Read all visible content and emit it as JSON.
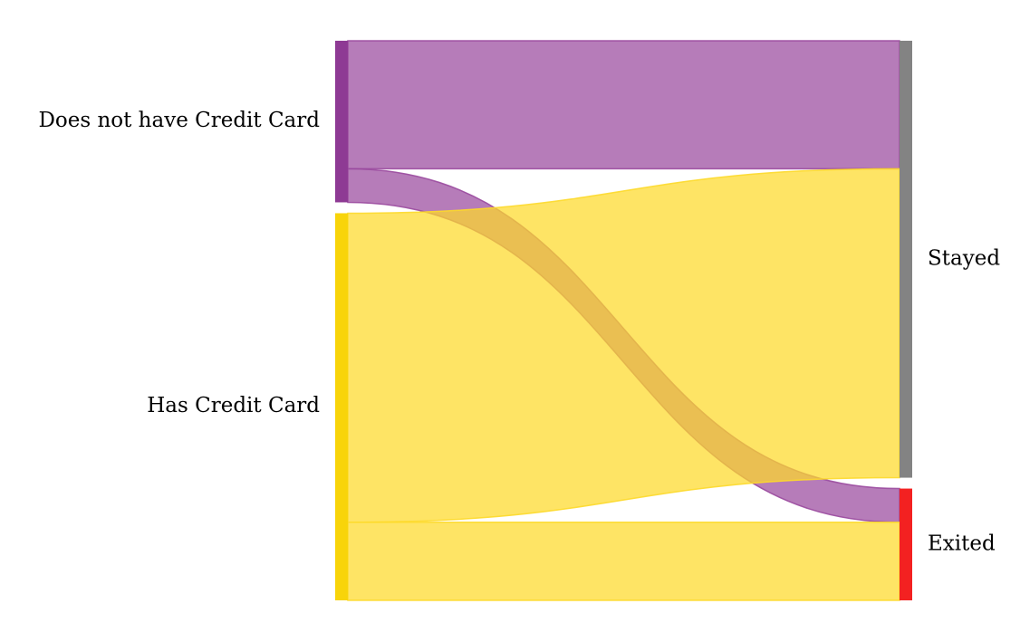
{
  "chart_data": {
    "type": "sankey",
    "title": "",
    "source_nodes": [
      {
        "id": "no_card",
        "label": "Does not have Credit Card",
        "color": "#8e3a94",
        "flow_color": "#9a4a9e"
      },
      {
        "id": "has_card",
        "label": "Has Credit Card",
        "color": "#f8d40a",
        "flow_color": "#fdd92a"
      }
    ],
    "target_nodes": [
      {
        "id": "stayed",
        "label": "Stayed",
        "color": "#838383"
      },
      {
        "id": "exited",
        "label": "Exited",
        "color": "#f32121"
      }
    ],
    "links": [
      {
        "source": "no_card",
        "target": "stayed",
        "value": 2332
      },
      {
        "source": "no_card",
        "target": "exited",
        "value": 613
      },
      {
        "source": "has_card",
        "target": "stayed",
        "value": 5631
      },
      {
        "source": "has_card",
        "target": "exited",
        "value": 1424
      }
    ]
  }
}
